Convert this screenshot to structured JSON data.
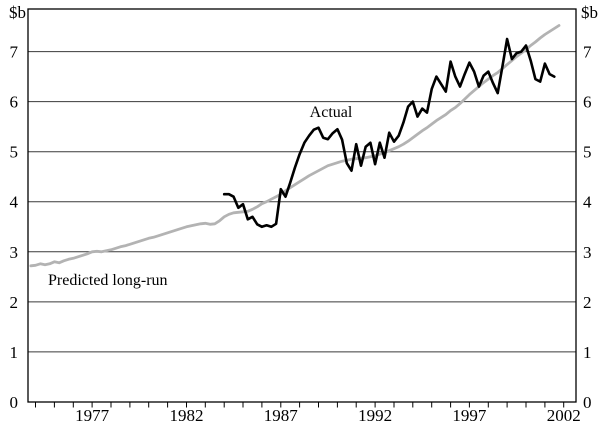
{
  "page": {
    "background": "#ffffff"
  },
  "chart_data": {
    "type": "line",
    "title": "",
    "unit_label_left": "$b",
    "unit_label_right": "$b",
    "grid": true,
    "legend": "none",
    "colors": {
      "actual": "#000000",
      "predicted": "#b3b3b3",
      "gridline": "#3a3a3a",
      "border": "#000000"
    },
    "x_axis": {
      "domain": [
        1973.6,
        2002.65
      ],
      "tick_start": 1974,
      "tick_end": 2002,
      "labels": [
        "1977",
        "1982",
        "1987",
        "1992",
        "1997",
        "2002"
      ]
    },
    "y_axis": {
      "min": 0,
      "max": 7.85,
      "gridlines": [
        1,
        2,
        3,
        4,
        5,
        6,
        7
      ],
      "tick_labels": [
        "0",
        "1",
        "2",
        "3",
        "4",
        "5",
        "6",
        "7"
      ]
    },
    "series": [
      {
        "name": "Predicted long-run",
        "data_name": "predicted-long-run-line",
        "color": "#b3b3b3",
        "width": 2.8,
        "x_start": 1973.75,
        "x_step": 0.25,
        "values": [
          2.72,
          2.73,
          2.76,
          2.74,
          2.76,
          2.8,
          2.78,
          2.82,
          2.85,
          2.87,
          2.9,
          2.93,
          2.96,
          3.0,
          3.01,
          3.0,
          3.02,
          3.04,
          3.07,
          3.1,
          3.12,
          3.15,
          3.18,
          3.21,
          3.24,
          3.27,
          3.29,
          3.32,
          3.35,
          3.38,
          3.41,
          3.44,
          3.47,
          3.5,
          3.52,
          3.54,
          3.56,
          3.57,
          3.55,
          3.56,
          3.62,
          3.7,
          3.75,
          3.78,
          3.79,
          3.8,
          3.81,
          3.85,
          3.9,
          3.96,
          4.0,
          4.05,
          4.1,
          4.15,
          4.22,
          4.28,
          4.34,
          4.4,
          4.46,
          4.52,
          4.57,
          4.62,
          4.67,
          4.72,
          4.75,
          4.78,
          4.81,
          4.83,
          4.85,
          4.86,
          4.87,
          4.88,
          4.9,
          4.92,
          4.95,
          4.98,
          5.02,
          5.06,
          5.1,
          5.15,
          5.21,
          5.28,
          5.35,
          5.42,
          5.48,
          5.55,
          5.62,
          5.68,
          5.74,
          5.82,
          5.88,
          5.96,
          6.05,
          6.14,
          6.22,
          6.3,
          6.38,
          6.45,
          6.52,
          6.58,
          6.66,
          6.74,
          6.82,
          6.9,
          6.97,
          7.04,
          7.12,
          7.19,
          7.27,
          7.34,
          7.4,
          7.46,
          7.52
        ]
      },
      {
        "name": "Actual",
        "data_name": "actual-line",
        "color": "#000000",
        "width": 2.6,
        "x_start": 1984.0,
        "x_step": 0.25,
        "values": [
          4.15,
          4.15,
          4.1,
          3.88,
          3.95,
          3.65,
          3.7,
          3.55,
          3.5,
          3.53,
          3.5,
          3.56,
          4.25,
          4.1,
          4.38,
          4.68,
          4.95,
          5.18,
          5.32,
          5.44,
          5.48,
          5.28,
          5.25,
          5.37,
          5.45,
          5.24,
          4.77,
          4.62,
          5.15,
          4.72,
          5.1,
          5.18,
          4.75,
          5.18,
          4.88,
          5.38,
          5.2,
          5.32,
          5.58,
          5.9,
          6.0,
          5.7,
          5.86,
          5.78,
          6.25,
          6.5,
          6.35,
          6.2,
          6.8,
          6.5,
          6.3,
          6.55,
          6.78,
          6.6,
          6.3,
          6.52,
          6.6,
          6.37,
          6.17,
          6.7,
          7.25,
          6.85,
          6.97,
          7.0,
          7.12,
          6.82,
          6.45,
          6.4,
          6.76,
          6.55,
          6.5
        ]
      }
    ],
    "annotations": [
      {
        "text": "Actual",
        "data_name": "actual-series-label",
        "x_year": 1989.66,
        "y_value": 5.81,
        "anchor": "middle"
      },
      {
        "text": "Predicted long-run",
        "data_name": "predicted-series-label",
        "x_year": 1974.66,
        "y_value": 2.46,
        "anchor": "start"
      }
    ]
  }
}
